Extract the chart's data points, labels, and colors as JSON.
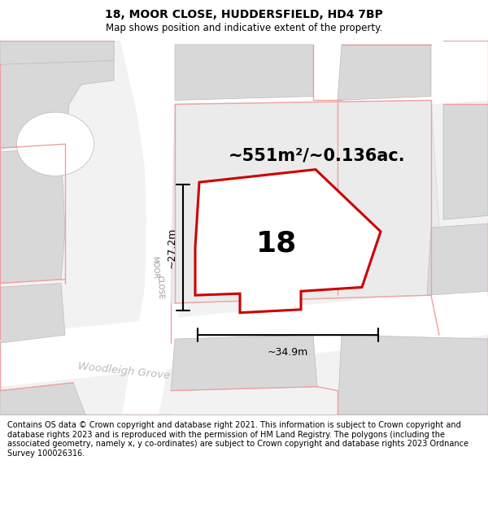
{
  "title_line1": "18, MOOR CLOSE, HUDDERSFIELD, HD4 7BP",
  "title_line2": "Map shows position and indicative extent of the property.",
  "footer_text": "Contains OS data © Crown copyright and database right 2021. This information is subject to Crown copyright and database rights 2023 and is reproduced with the permission of HM Land Registry. The polygons (including the associated geometry, namely x, y co-ordinates) are subject to Crown copyright and database rights 2023 Ordnance Survey 100026316.",
  "area_label": "~551m²/~0.136ac.",
  "width_label": "~34.9m",
  "height_label": "~27.2m",
  "number_label": "18",
  "map_bg": "#f2f2f2",
  "property_fill": "#ffffff",
  "property_edge": "#cc0000",
  "pink_line": "#f0a0a0",
  "road_white": "#ffffff",
  "block_gray": "#d8d8d8",
  "block_edge": "#cccccc",
  "title_fontsize": 10,
  "subtitle_fontsize": 8.5,
  "footer_fontsize": 7.0,
  "area_fontsize": 16,
  "number_fontsize": 28,
  "dim_fontsize": 9
}
